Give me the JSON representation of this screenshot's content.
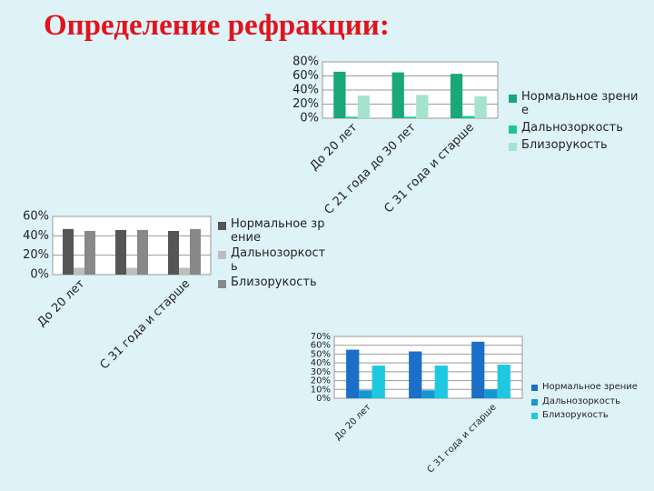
{
  "title": "Определение рефракции:",
  "chart_data": [
    {
      "type": "bar",
      "categories": [
        "До 20 лет",
        "С 21 года до 30 лет",
        "С 31 года и старше"
      ],
      "series": [
        {
          "name": "Нормальное зрение",
          "color": "#1aa77a",
          "values": [
            66,
            65,
            63
          ]
        },
        {
          "name": "Дальнозоркость",
          "color": "#19c79b",
          "values": [
            2,
            2,
            3
          ]
        },
        {
          "name": "Близорукость",
          "color": "#a6e3cc",
          "values": [
            32,
            33,
            31
          ]
        }
      ],
      "ylim": [
        0,
        80
      ],
      "yticks": [
        {
          "value": 0,
          "label": "0%"
        },
        {
          "value": 20,
          "label": "20%"
        },
        {
          "value": 40,
          "label": "40%"
        },
        {
          "value": 60,
          "label": "60%"
        },
        {
          "value": 80,
          "label": "80%"
        }
      ],
      "grid": true,
      "legend": "right"
    },
    {
      "type": "bar",
      "categories": [
        "До 20 лет",
        null,
        "С 31 года и старше"
      ],
      "series": [
        {
          "name": "Нормальное зрение",
          "color": "#555555",
          "values": [
            47,
            46,
            45
          ]
        },
        {
          "name": "Дальнозоркость",
          "color": "#bdbdbd",
          "values": [
            7,
            7,
            7
          ]
        },
        {
          "name": "Близорукость",
          "color": "#888888",
          "values": [
            45,
            46,
            47
          ]
        }
      ],
      "ylim": [
        0,
        60
      ],
      "yticks": [
        {
          "value": 0,
          "label": "0%"
        },
        {
          "value": 20,
          "label": "20%"
        },
        {
          "value": 40,
          "label": "40%"
        },
        {
          "value": 60,
          "label": "60%"
        }
      ],
      "grid": true,
      "legend": "right"
    },
    {
      "type": "bar",
      "categories": [
        "До 20 лет",
        null,
        "С 31 года и старше"
      ],
      "series": [
        {
          "name": "Нормальное зрение",
          "color": "#1b6fc8",
          "values": [
            55,
            53,
            64
          ]
        },
        {
          "name": "Дальнозоркость",
          "color": "#1598d0",
          "values": [
            9,
            9,
            10
          ]
        },
        {
          "name": "Близорукость",
          "color": "#1ec8e0",
          "values": [
            37,
            37,
            38
          ]
        }
      ],
      "ylim": [
        0,
        70
      ],
      "yticks": [
        {
          "value": 0,
          "label": "0%"
        },
        {
          "value": 10,
          "label": "10%"
        },
        {
          "value": 20,
          "label": "20%"
        },
        {
          "value": 30,
          "label": "30%"
        },
        {
          "value": 40,
          "label": "40%"
        },
        {
          "value": 50,
          "label": "50%"
        },
        {
          "value": 60,
          "label": "60%"
        },
        {
          "value": 70,
          "label": "70%"
        }
      ],
      "grid": true,
      "legend": "right"
    }
  ]
}
